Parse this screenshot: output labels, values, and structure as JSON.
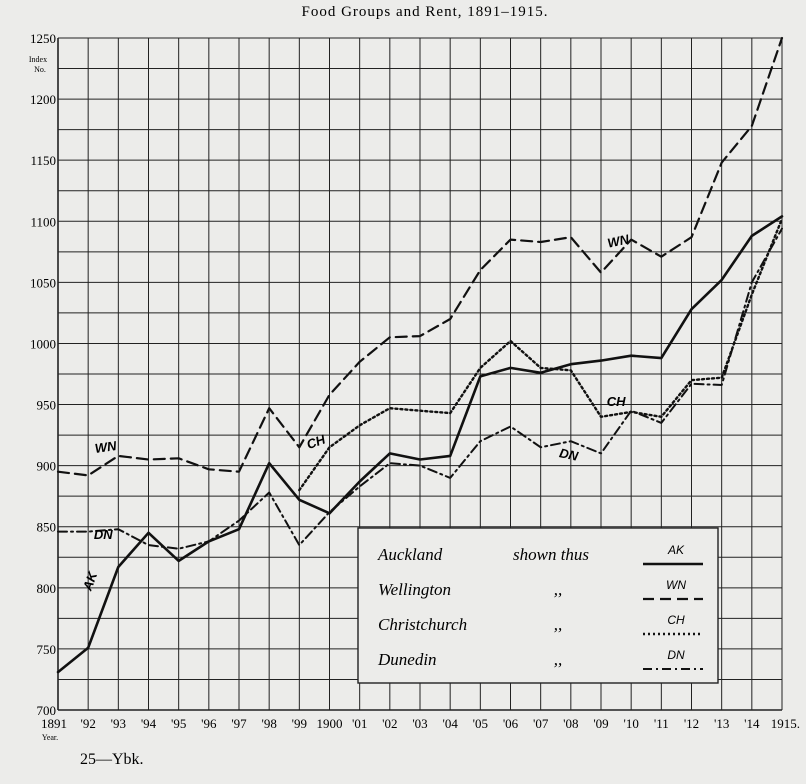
{
  "chart_data": {
    "type": "line",
    "title": "Food Groups and Rent, 1891–1915.",
    "ylabel": "Index No.",
    "xlabel": "Year.",
    "ylim": [
      700,
      1250
    ],
    "yticks": [
      700,
      750,
      800,
      850,
      900,
      950,
      1000,
      1050,
      1100,
      1150,
      1200,
      1250
    ],
    "categories": [
      "1891",
      "'92",
      "'93",
      "'94",
      "'95",
      "'96",
      "'97",
      "'98",
      "'99",
      "1900",
      "'01",
      "'02",
      "'03",
      "'04",
      "'05",
      "'06",
      "'07",
      "'08",
      "'09",
      "'10",
      "'11",
      "'12",
      "'13",
      "'14",
      "1915."
    ],
    "series": [
      {
        "name": "Auckland",
        "abbr": "AK",
        "style": "solid",
        "values": [
          731,
          751,
          817,
          845,
          822,
          838,
          848,
          902,
          872,
          861,
          887,
          910,
          905,
          908,
          973,
          980,
          976,
          983,
          986,
          990,
          988,
          1028,
          1052,
          1088,
          1104
        ]
      },
      {
        "name": "Wellington",
        "abbr": "WN",
        "style": "dashed",
        "values": [
          895,
          892,
          908,
          905,
          906,
          897,
          895,
          947,
          915,
          958,
          985,
          1005,
          1006,
          1020,
          1060,
          1085,
          1083,
          1087,
          1058,
          1085,
          1071,
          1087,
          1148,
          1178,
          1250
        ]
      },
      {
        "name": "Christchurch",
        "abbr": "CH",
        "style": "dotted",
        "values": [
          null,
          null,
          null,
          null,
          null,
          null,
          null,
          null,
          880,
          915,
          933,
          947,
          945,
          943,
          980,
          1002,
          980,
          978,
          940,
          944,
          940,
          970,
          972,
          1040,
          1102
        ]
      },
      {
        "name": "Dunedin",
        "abbr": "DN",
        "style": "dashdot",
        "values": [
          846,
          846,
          848,
          835,
          832,
          838,
          855,
          878,
          835,
          862,
          883,
          902,
          900,
          890,
          920,
          932,
          915,
          920,
          910,
          945,
          935,
          967,
          966,
          1050,
          1094
        ]
      }
    ],
    "legend": {
      "position": "bottom-right",
      "shown_thus": "shown thus",
      "ditto": ",,"
    },
    "grid": true
  },
  "labels": {
    "index_top": "Index",
    "index_bottom": "No.",
    "year": "Year.",
    "footer": "25—Ybk."
  }
}
